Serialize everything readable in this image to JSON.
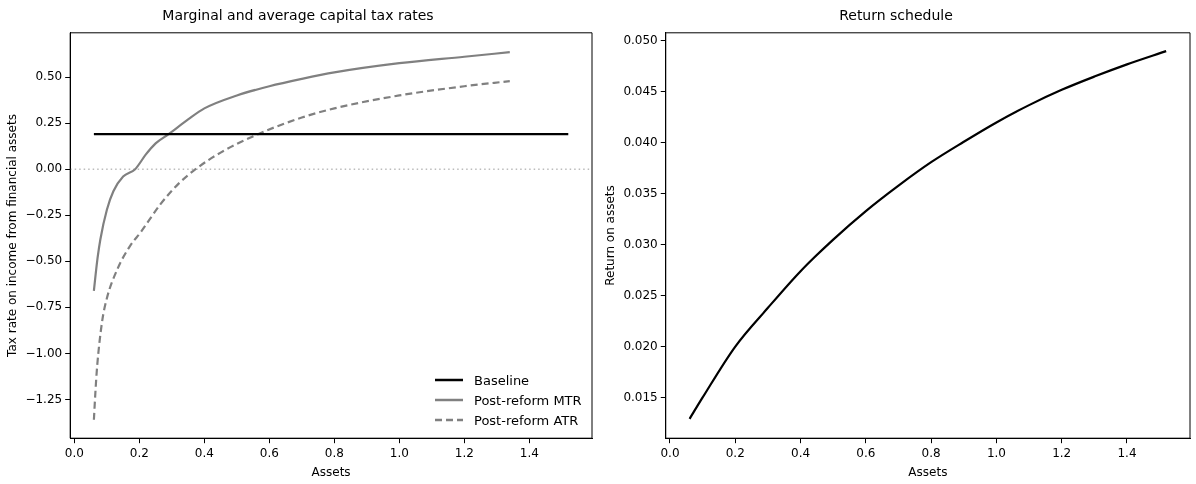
{
  "chart_data": [
    {
      "type": "line",
      "title": "Marginal and average capital tax rates",
      "xlabel": "Assets",
      "ylabel": "Tax rate on income from financial assets",
      "xlim": [
        -0.013,
        1.593
      ],
      "xticks": [
        {
          "value": 0,
          "label": "0.0"
        },
        {
          "value": 0.2,
          "label": "0.2"
        },
        {
          "value": 0.4,
          "label": "0.4"
        },
        {
          "value": 0.6,
          "label": "0.6"
        },
        {
          "value": 0.8,
          "label": "0.8"
        },
        {
          "value": 1,
          "label": "1.0"
        },
        {
          "value": 1.2,
          "label": "1.2"
        },
        {
          "value": 1.4,
          "label": "1.4"
        }
      ],
      "ylim": [
        -1.46,
        0.74
      ],
      "yticks": [
        {
          "value": -1.25,
          "label": "−1.25"
        },
        {
          "value": -1,
          "label": "−1.00"
        },
        {
          "value": -0.75,
          "label": "−0.75"
        },
        {
          "value": -0.5,
          "label": "−0.50"
        },
        {
          "value": -0.25,
          "label": "−0.25"
        },
        {
          "value": 0,
          "label": "0.00"
        },
        {
          "value": 0.25,
          "label": "0.25"
        },
        {
          "value": 0.5,
          "label": "0.50"
        }
      ],
      "grid": false,
      "legend": "bottom right",
      "marker": "none",
      "ref_lines": [
        {
          "axis": "y",
          "value": 0,
          "color": "#999999",
          "line_style": "dotted"
        }
      ],
      "series": [
        {
          "name": "Baseline",
          "color": "#000000",
          "line_style": "solid",
          "x": [
            0.06,
            1.52
          ],
          "values": [
            0.19,
            0.19
          ]
        },
        {
          "name": "Post-reform MTR",
          "color": "#808080",
          "line_style": "solid",
          "x": [
            0.06,
            0.07,
            0.08,
            0.1,
            0.12,
            0.15,
            0.187,
            0.22,
            0.25,
            0.29,
            0.35,
            0.4,
            0.5,
            0.6,
            0.7,
            0.8,
            1.0,
            1.2,
            1.34
          ],
          "values": [
            -0.66,
            -0.5,
            -0.38,
            -0.22,
            -0.12,
            -0.04,
            0,
            0.08,
            0.14,
            0.19,
            0.27,
            0.33,
            0.4,
            0.45,
            0.49,
            0.525,
            0.575,
            0.61,
            0.635
          ]
        },
        {
          "name": "Post-reform ATR",
          "color": "#808080",
          "line_style": "dashed",
          "x": [
            0.06,
            0.065,
            0.07,
            0.085,
            0.1,
            0.133,
            0.17,
            0.205,
            0.265,
            0.32,
            0.373,
            0.45,
            0.565,
            0.7,
            0.8,
            1.0,
            1.2,
            1.34
          ],
          "values": [
            -1.36,
            -1.2,
            -1.07,
            -0.83,
            -0.7,
            -0.54,
            -0.42,
            -0.34,
            -0.19,
            -0.08,
            0,
            0.09,
            0.19,
            0.28,
            0.33,
            0.4,
            0.45,
            0.478
          ]
        }
      ]
    },
    {
      "type": "line",
      "title": "Return schedule",
      "xlabel": "Assets",
      "ylabel": "Return on assets",
      "xlim": [
        -0.013,
        1.593
      ],
      "xticks": [
        {
          "value": 0,
          "label": "0.0"
        },
        {
          "value": 0.2,
          "label": "0.2"
        },
        {
          "value": 0.4,
          "label": "0.4"
        },
        {
          "value": 0.6,
          "label": "0.6"
        },
        {
          "value": 0.8,
          "label": "0.8"
        },
        {
          "value": 1,
          "label": "1.0"
        },
        {
          "value": 1.2,
          "label": "1.2"
        },
        {
          "value": 1.4,
          "label": "1.4"
        }
      ],
      "ylim": [
        0.011,
        0.0508
      ],
      "yticks": [
        0.015,
        {
          "value": 0.02,
          "label": "0.020"
        },
        0.025,
        {
          "value": 0.03,
          "label": "0.030"
        },
        0.035,
        {
          "value": 0.04,
          "label": "0.040"
        },
        0.045,
        {
          "value": 0.05,
          "label": "0.050"
        }
      ],
      "grid": false,
      "marker": "none",
      "series": [
        {
          "color": "#000000",
          "line_style": "solid",
          "x": [
            0.06,
            0.1,
            0.2,
            0.3,
            0.4,
            0.5,
            0.6,
            0.7,
            0.8,
            0.9,
            1.0,
            1.1,
            1.2,
            1.3,
            1.4,
            1.52
          ],
          "values": [
            0.0129,
            0.015,
            0.02,
            0.0238,
            0.0274,
            0.0305,
            0.0333,
            0.0358,
            0.0381,
            0.0401,
            0.042,
            0.0437,
            0.0452,
            0.0465,
            0.0477,
            0.049
          ]
        }
      ]
    }
  ]
}
